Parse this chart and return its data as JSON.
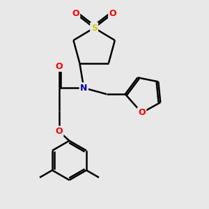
{
  "background_color": "#e8e8e8",
  "atom_colors": {
    "C": "#000000",
    "N": "#0000cd",
    "O": "#ff0000",
    "S": "#cccc00"
  },
  "bond_color": "#000000",
  "bond_width": 1.8,
  "figsize": [
    3.0,
    3.0
  ],
  "dpi": 100,
  "xlim": [
    0,
    10
  ],
  "ylim": [
    0,
    10
  ]
}
